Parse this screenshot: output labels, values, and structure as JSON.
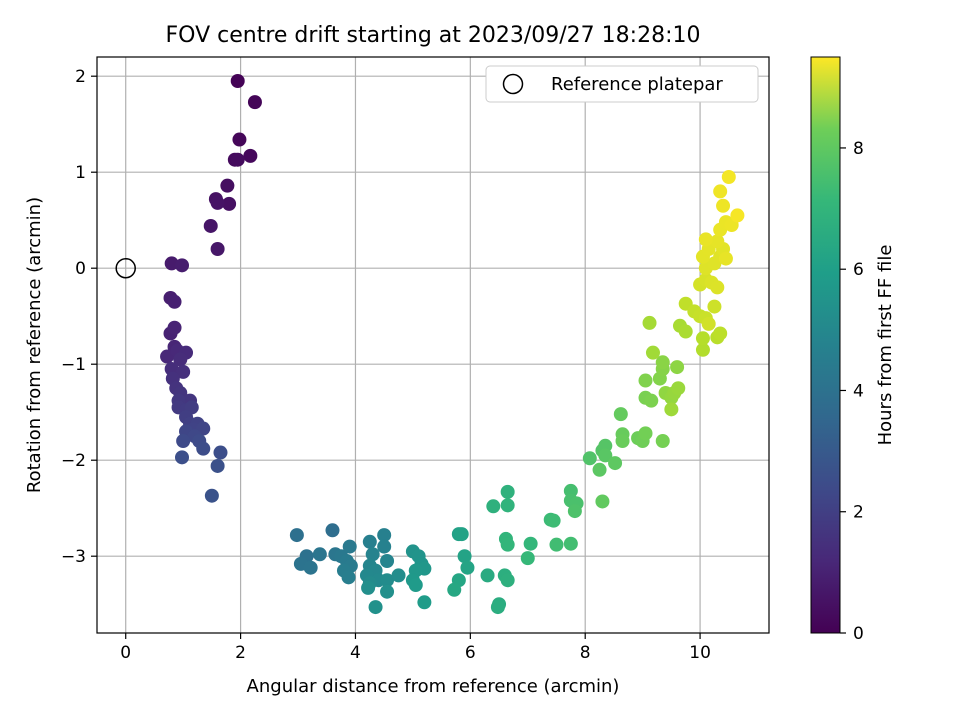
{
  "chart_data": {
    "type": "scatter",
    "title": "FOV centre drift starting at 2023/09/27 18:28:10",
    "xlabel": "Angular distance from reference (arcmin)",
    "ylabel": "Rotation from reference (arcmin)",
    "xlim": [
      -0.5,
      11.2
    ],
    "ylim": [
      -3.8,
      2.2
    ],
    "xticks": [
      0,
      2,
      4,
      6,
      8,
      10
    ],
    "yticks": [
      -3,
      -2,
      -1,
      0,
      1,
      2
    ],
    "grid": true,
    "legend": {
      "placement": "upper-right",
      "entries": [
        "Reference platepar"
      ]
    },
    "reference_point": {
      "x": 0,
      "y": 0,
      "name": "Reference platepar"
    },
    "colorbar": {
      "label": "Hours from first FF file",
      "range": [
        0,
        9.5
      ],
      "ticks": [
        0,
        2,
        4,
        6,
        8
      ],
      "colormap": "viridis"
    },
    "points": [
      {
        "x": 1.95,
        "y": 1.95,
        "c": 0.05
      },
      {
        "x": 2.25,
        "y": 1.73,
        "c": 0.1
      },
      {
        "x": 1.98,
        "y": 1.34,
        "c": 0.15
      },
      {
        "x": 2.17,
        "y": 1.17,
        "c": 0.2
      },
      {
        "x": 1.9,
        "y": 1.13,
        "c": 0.25
      },
      {
        "x": 1.95,
        "y": 1.13,
        "c": 0.3
      },
      {
        "x": 1.77,
        "y": 0.86,
        "c": 0.35
      },
      {
        "x": 1.8,
        "y": 0.67,
        "c": 0.4
      },
      {
        "x": 1.57,
        "y": 0.72,
        "c": 0.45
      },
      {
        "x": 1.6,
        "y": 0.68,
        "c": 0.5
      },
      {
        "x": 1.48,
        "y": 0.44,
        "c": 0.55
      },
      {
        "x": 1.6,
        "y": 0.2,
        "c": 0.6
      },
      {
        "x": 0.8,
        "y": 0.05,
        "c": 0.7
      },
      {
        "x": 0.98,
        "y": 0.03,
        "c": 0.75
      },
      {
        "x": 0.78,
        "y": -0.31,
        "c": 0.8
      },
      {
        "x": 0.85,
        "y": -0.35,
        "c": 0.85
      },
      {
        "x": 0.78,
        "y": -0.68,
        "c": 0.9
      },
      {
        "x": 0.85,
        "y": -0.62,
        "c": 0.95
      },
      {
        "x": 0.85,
        "y": -0.82,
        "c": 1.0
      },
      {
        "x": 0.72,
        "y": -0.92,
        "c": 1.05
      },
      {
        "x": 0.9,
        "y": -0.86,
        "c": 1.1
      },
      {
        "x": 1.05,
        "y": -0.88,
        "c": 1.15
      },
      {
        "x": 0.95,
        "y": -0.95,
        "c": 1.2
      },
      {
        "x": 0.8,
        "y": -1.05,
        "c": 1.25
      },
      {
        "x": 1.0,
        "y": -1.08,
        "c": 1.3
      },
      {
        "x": 0.82,
        "y": -1.15,
        "c": 1.35
      },
      {
        "x": 0.88,
        "y": -1.25,
        "c": 1.4
      },
      {
        "x": 0.95,
        "y": -1.3,
        "c": 1.45
      },
      {
        "x": 1.12,
        "y": -1.38,
        "c": 1.5
      },
      {
        "x": 0.92,
        "y": -1.38,
        "c": 1.55
      },
      {
        "x": 0.92,
        "y": -1.45,
        "c": 1.6
      },
      {
        "x": 1.05,
        "y": -1.48,
        "c": 1.65
      },
      {
        "x": 1.15,
        "y": -1.45,
        "c": 1.7
      },
      {
        "x": 1.05,
        "y": -1.55,
        "c": 1.75
      },
      {
        "x": 1.12,
        "y": -1.62,
        "c": 1.8
      },
      {
        "x": 1.25,
        "y": -1.62,
        "c": 1.85
      },
      {
        "x": 1.18,
        "y": -1.68,
        "c": 1.9
      },
      {
        "x": 1.35,
        "y": -1.67,
        "c": 1.95
      },
      {
        "x": 1.05,
        "y": -1.7,
        "c": 2.0
      },
      {
        "x": 1.2,
        "y": -1.75,
        "c": 2.05
      },
      {
        "x": 1.0,
        "y": -1.8,
        "c": 2.1
      },
      {
        "x": 1.28,
        "y": -1.8,
        "c": 2.15
      },
      {
        "x": 1.35,
        "y": -1.88,
        "c": 2.2
      },
      {
        "x": 1.65,
        "y": -1.92,
        "c": 2.25
      },
      {
        "x": 0.98,
        "y": -1.97,
        "c": 2.3
      },
      {
        "x": 1.6,
        "y": -2.06,
        "c": 2.35
      },
      {
        "x": 1.5,
        "y": -2.37,
        "c": 2.4
      },
      {
        "x": 3.6,
        "y": -2.73,
        "c": 3.4
      },
      {
        "x": 2.98,
        "y": -2.78,
        "c": 3.5
      },
      {
        "x": 3.15,
        "y": -3.0,
        "c": 3.55
      },
      {
        "x": 3.05,
        "y": -3.08,
        "c": 3.6
      },
      {
        "x": 3.22,
        "y": -3.12,
        "c": 3.65
      },
      {
        "x": 3.38,
        "y": -2.98,
        "c": 3.7
      },
      {
        "x": 3.65,
        "y": -2.98,
        "c": 3.75
      },
      {
        "x": 3.75,
        "y": -3.0,
        "c": 3.8
      },
      {
        "x": 3.9,
        "y": -2.9,
        "c": 3.85
      },
      {
        "x": 3.85,
        "y": -3.05,
        "c": 3.9
      },
      {
        "x": 3.92,
        "y": -3.1,
        "c": 3.95
      },
      {
        "x": 3.8,
        "y": -3.15,
        "c": 4.0
      },
      {
        "x": 3.88,
        "y": -3.22,
        "c": 4.05
      },
      {
        "x": 4.25,
        "y": -2.85,
        "c": 4.1
      },
      {
        "x": 4.5,
        "y": -2.78,
        "c": 4.15
      },
      {
        "x": 4.5,
        "y": -2.9,
        "c": 4.2
      },
      {
        "x": 4.3,
        "y": -2.98,
        "c": 4.25
      },
      {
        "x": 4.55,
        "y": -3.05,
        "c": 4.3
      },
      {
        "x": 4.25,
        "y": -3.1,
        "c": 4.35
      },
      {
        "x": 4.35,
        "y": -3.15,
        "c": 4.4
      },
      {
        "x": 4.2,
        "y": -3.2,
        "c": 4.45
      },
      {
        "x": 4.4,
        "y": -3.25,
        "c": 4.5
      },
      {
        "x": 4.25,
        "y": -3.28,
        "c": 4.55
      },
      {
        "x": 4.55,
        "y": -3.25,
        "c": 4.6
      },
      {
        "x": 4.75,
        "y": -3.2,
        "c": 4.65
      },
      {
        "x": 4.22,
        "y": -3.33,
        "c": 4.7
      },
      {
        "x": 4.55,
        "y": -3.37,
        "c": 4.75
      },
      {
        "x": 4.35,
        "y": -3.53,
        "c": 4.8
      },
      {
        "x": 5.0,
        "y": -2.95,
        "c": 4.85
      },
      {
        "x": 5.1,
        "y": -3.0,
        "c": 4.9
      },
      {
        "x": 5.15,
        "y": -3.08,
        "c": 4.95
      },
      {
        "x": 5.2,
        "y": -3.13,
        "c": 5.0
      },
      {
        "x": 5.05,
        "y": -3.15,
        "c": 5.05
      },
      {
        "x": 5.0,
        "y": -3.25,
        "c": 5.1
      },
      {
        "x": 5.05,
        "y": -3.3,
        "c": 5.15
      },
      {
        "x": 5.2,
        "y": -3.48,
        "c": 5.2
      },
      {
        "x": 5.8,
        "y": -2.77,
        "c": 5.4
      },
      {
        "x": 5.85,
        "y": -2.77,
        "c": 5.45
      },
      {
        "x": 5.9,
        "y": -3.0,
        "c": 5.5
      },
      {
        "x": 5.95,
        "y": -3.12,
        "c": 5.55
      },
      {
        "x": 5.8,
        "y": -3.25,
        "c": 5.6
      },
      {
        "x": 5.72,
        "y": -3.35,
        "c": 5.65
      },
      {
        "x": 6.3,
        "y": -3.2,
        "c": 5.8
      },
      {
        "x": 6.5,
        "y": -3.5,
        "c": 5.85
      },
      {
        "x": 6.48,
        "y": -3.53,
        "c": 5.9
      },
      {
        "x": 6.6,
        "y": -3.2,
        "c": 5.95
      },
      {
        "x": 6.65,
        "y": -3.25,
        "c": 6.0
      },
      {
        "x": 6.4,
        "y": -2.48,
        "c": 6.05
      },
      {
        "x": 6.65,
        "y": -2.33,
        "c": 6.1
      },
      {
        "x": 6.65,
        "y": -2.47,
        "c": 6.15
      },
      {
        "x": 6.62,
        "y": -2.82,
        "c": 6.2
      },
      {
        "x": 6.65,
        "y": -2.88,
        "c": 6.25
      },
      {
        "x": 7.05,
        "y": -2.87,
        "c": 6.3
      },
      {
        "x": 7.0,
        "y": -3.02,
        "c": 6.35
      },
      {
        "x": 7.4,
        "y": -2.62,
        "c": 6.45
      },
      {
        "x": 7.45,
        "y": -2.63,
        "c": 6.5
      },
      {
        "x": 7.5,
        "y": -2.88,
        "c": 6.55
      },
      {
        "x": 7.75,
        "y": -2.87,
        "c": 6.6
      },
      {
        "x": 7.75,
        "y": -2.32,
        "c": 6.65
      },
      {
        "x": 7.75,
        "y": -2.42,
        "c": 6.7
      },
      {
        "x": 7.85,
        "y": -2.45,
        "c": 6.75
      },
      {
        "x": 7.82,
        "y": -2.53,
        "c": 6.8
      },
      {
        "x": 8.08,
        "y": -1.98,
        "c": 6.85
      },
      {
        "x": 8.3,
        "y": -1.9,
        "c": 6.9
      },
      {
        "x": 8.35,
        "y": -1.85,
        "c": 6.95
      },
      {
        "x": 8.35,
        "y": -1.95,
        "c": 7.0
      },
      {
        "x": 8.25,
        "y": -2.1,
        "c": 7.05
      },
      {
        "x": 8.52,
        "y": -2.03,
        "c": 7.1
      },
      {
        "x": 8.3,
        "y": -2.43,
        "c": 7.15
      },
      {
        "x": 8.62,
        "y": -1.52,
        "c": 7.2
      },
      {
        "x": 8.65,
        "y": -1.73,
        "c": 7.25
      },
      {
        "x": 8.65,
        "y": -1.8,
        "c": 7.3
      },
      {
        "x": 8.92,
        "y": -1.77,
        "c": 7.35
      },
      {
        "x": 9.0,
        "y": -1.8,
        "c": 7.4
      },
      {
        "x": 9.05,
        "y": -1.72,
        "c": 7.45
      },
      {
        "x": 9.35,
        "y": -1.8,
        "c": 7.5
      },
      {
        "x": 9.05,
        "y": -1.35,
        "c": 7.55
      },
      {
        "x": 9.15,
        "y": -1.38,
        "c": 7.6
      },
      {
        "x": 9.05,
        "y": -1.17,
        "c": 7.65
      },
      {
        "x": 9.3,
        "y": -1.15,
        "c": 7.7
      },
      {
        "x": 9.35,
        "y": -1.05,
        "c": 7.75
      },
      {
        "x": 9.35,
        "y": -0.98,
        "c": 7.8
      },
      {
        "x": 9.6,
        "y": -1.03,
        "c": 7.85
      },
      {
        "x": 9.4,
        "y": -1.3,
        "c": 7.9
      },
      {
        "x": 9.5,
        "y": -1.35,
        "c": 7.95
      },
      {
        "x": 9.55,
        "y": -1.3,
        "c": 8.0
      },
      {
        "x": 9.62,
        "y": -1.25,
        "c": 8.05
      },
      {
        "x": 9.5,
        "y": -1.47,
        "c": 8.1
      },
      {
        "x": 9.18,
        "y": -0.88,
        "c": 8.15
      },
      {
        "x": 9.12,
        "y": -0.57,
        "c": 8.2
      },
      {
        "x": 9.65,
        "y": -0.6,
        "c": 8.25
      },
      {
        "x": 9.75,
        "y": -0.66,
        "c": 8.3
      },
      {
        "x": 10.05,
        "y": -0.85,
        "c": 8.4
      },
      {
        "x": 10.05,
        "y": -0.73,
        "c": 8.45
      },
      {
        "x": 10.3,
        "y": -0.72,
        "c": 8.5
      },
      {
        "x": 10.35,
        "y": -0.68,
        "c": 8.55
      },
      {
        "x": 9.75,
        "y": -0.37,
        "c": 8.6
      },
      {
        "x": 9.9,
        "y": -0.45,
        "c": 8.65
      },
      {
        "x": 10.0,
        "y": -0.5,
        "c": 8.7
      },
      {
        "x": 10.1,
        "y": -0.52,
        "c": 8.75
      },
      {
        "x": 10.25,
        "y": -0.4,
        "c": 8.8
      },
      {
        "x": 10.15,
        "y": -0.58,
        "c": 8.85
      },
      {
        "x": 10.0,
        "y": -0.17,
        "c": 8.9
      },
      {
        "x": 10.1,
        "y": -0.12,
        "c": 8.95
      },
      {
        "x": 10.2,
        "y": -0.15,
        "c": 9.0
      },
      {
        "x": 10.3,
        "y": -0.2,
        "c": 9.02
      },
      {
        "x": 10.1,
        "y": 0.0,
        "c": 9.04
      },
      {
        "x": 10.25,
        "y": 0.05,
        "c": 9.06
      },
      {
        "x": 10.35,
        "y": 0.12,
        "c": 9.08
      },
      {
        "x": 10.4,
        "y": 0.2,
        "c": 9.1
      },
      {
        "x": 10.05,
        "y": 0.12,
        "c": 9.12
      },
      {
        "x": 10.15,
        "y": 0.2,
        "c": 9.14
      },
      {
        "x": 10.3,
        "y": 0.28,
        "c": 9.16
      },
      {
        "x": 10.45,
        "y": 0.1,
        "c": 9.18
      },
      {
        "x": 10.1,
        "y": 0.3,
        "c": 9.2
      },
      {
        "x": 10.35,
        "y": 0.4,
        "c": 9.22
      },
      {
        "x": 10.45,
        "y": 0.48,
        "c": 9.24
      },
      {
        "x": 10.55,
        "y": 0.45,
        "c": 9.26
      },
      {
        "x": 10.4,
        "y": 0.65,
        "c": 9.28
      },
      {
        "x": 10.35,
        "y": 0.8,
        "c": 9.3
      },
      {
        "x": 10.5,
        "y": 0.95,
        "c": 9.35
      },
      {
        "x": 10.65,
        "y": 0.55,
        "c": 9.4
      }
    ]
  }
}
